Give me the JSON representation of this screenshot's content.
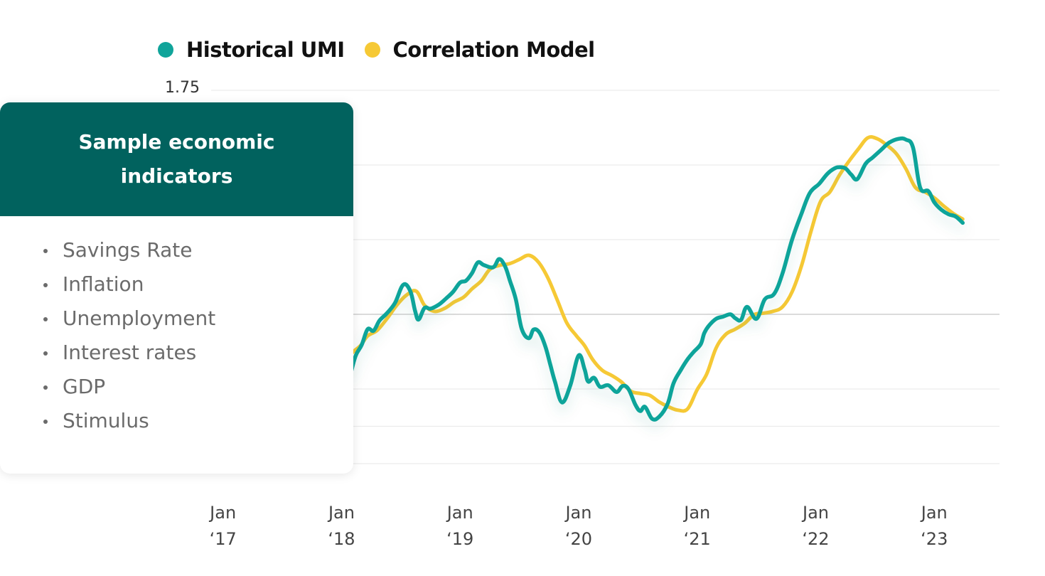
{
  "legend": [
    {
      "label": "Historical UMI",
      "color": "#10a49a"
    },
    {
      "label": "Correlation Model",
      "color": "#f6c935"
    }
  ],
  "info_card": {
    "title": "Sample economic indicators",
    "items": [
      "Savings Rate",
      "Inflation",
      "Unemployment",
      "Interest rates",
      "GDP",
      "Stimulus"
    ],
    "header_color": "#01625e"
  },
  "chart_data": {
    "type": "line",
    "xlabel": "",
    "ylabel": "",
    "x_ticks": [
      {
        "month": "Jan",
        "year": "‘17",
        "x": 2017.0
      },
      {
        "month": "Jan",
        "year": "‘18",
        "x": 2018.0
      },
      {
        "month": "Jan",
        "year": "‘19",
        "x": 2019.0
      },
      {
        "month": "Jan",
        "year": "‘20",
        "x": 2020.0
      },
      {
        "month": "Jan",
        "year": "‘21",
        "x": 2021.0
      },
      {
        "month": "Jan",
        "year": "‘22",
        "x": 2022.0
      },
      {
        "month": "Jan",
        "year": "‘23",
        "x": 2023.0
      }
    ],
    "y_tick_labels": [
      "1.75"
    ],
    "xlim": [
      2016.9,
      2023.55
    ],
    "ylim": [
      0.75,
      1.75
    ],
    "gridlines_y": [
      0.75,
      0.85,
      0.95,
      1.15,
      1.35,
      1.55,
      1.75
    ],
    "baseline_y": 1.15,
    "series": [
      {
        "name": "Historical UMI",
        "color": "#10a49a",
        "x": [
          2018.08,
          2018.12,
          2018.17,
          2018.22,
          2018.27,
          2018.32,
          2018.38,
          2018.45,
          2018.52,
          2018.58,
          2018.62,
          2018.65,
          2018.7,
          2018.75,
          2018.82,
          2018.88,
          2018.94,
          2019.0,
          2019.05,
          2019.1,
          2019.15,
          2019.2,
          2019.28,
          2019.33,
          2019.38,
          2019.42,
          2019.47,
          2019.52,
          2019.58,
          2019.62,
          2019.67,
          2019.72,
          2019.76,
          2019.8,
          2019.86,
          2019.93,
          2020.0,
          2020.05,
          2020.08,
          2020.13,
          2020.18,
          2020.25,
          2020.32,
          2020.37,
          2020.42,
          2020.48,
          2020.52,
          2020.56,
          2020.62,
          2020.68,
          2020.75,
          2020.8,
          2020.86,
          2020.92,
          2020.97,
          2021.03,
          2021.06,
          2021.1,
          2021.16,
          2021.22,
          2021.28,
          2021.32,
          2021.37,
          2021.42,
          2021.5,
          2021.57,
          2021.65,
          2021.72,
          2021.8,
          2021.88,
          2021.95,
          2022.03,
          2022.1,
          2022.16,
          2022.2,
          2022.25,
          2022.3,
          2022.35,
          2022.42,
          2022.48,
          2022.55,
          2022.62,
          2022.7,
          2022.76,
          2022.82,
          2022.88,
          2022.95,
          2023.0,
          2023.06,
          2023.12,
          2023.18,
          2023.24
        ],
        "y": [
          0.995,
          1.04,
          1.068,
          1.11,
          1.106,
          1.133,
          1.152,
          1.18,
          1.229,
          1.212,
          1.16,
          1.136,
          1.167,
          1.165,
          1.176,
          1.192,
          1.21,
          1.235,
          1.24,
          1.26,
          1.289,
          1.282,
          1.276,
          1.298,
          1.278,
          1.24,
          1.19,
          1.111,
          1.086,
          1.109,
          1.101,
          1.063,
          1.016,
          0.97,
          0.914,
          0.96,
          1.04,
          1.003,
          0.97,
          0.98,
          0.956,
          0.96,
          0.942,
          0.958,
          0.95,
          0.907,
          0.891,
          0.902,
          0.87,
          0.876,
          0.91,
          0.965,
          1.0,
          1.03,
          1.049,
          1.07,
          1.1,
          1.12,
          1.138,
          1.144,
          1.15,
          1.14,
          1.135,
          1.17,
          1.138,
          1.19,
          1.205,
          1.26,
          1.35,
          1.42,
          1.475,
          1.5,
          1.527,
          1.541,
          1.544,
          1.541,
          1.524,
          1.512,
          1.553,
          1.57,
          1.59,
          1.61,
          1.62,
          1.618,
          1.597,
          1.49,
          1.48,
          1.45,
          1.43,
          1.418,
          1.412,
          1.395
        ]
      },
      {
        "name": "Correlation Model",
        "color": "#f6c935",
        "x": [
          2018.05,
          2018.1,
          2018.16,
          2018.22,
          2018.3,
          2018.38,
          2018.47,
          2018.55,
          2018.63,
          2018.7,
          2018.78,
          2018.87,
          2018.95,
          2019.03,
          2019.1,
          2019.18,
          2019.25,
          2019.33,
          2019.42,
          2019.5,
          2019.58,
          2019.66,
          2019.74,
          2019.82,
          2019.9,
          2019.98,
          2020.05,
          2020.12,
          2020.2,
          2020.28,
          2020.36,
          2020.44,
          2020.52,
          2020.6,
          2020.68,
          2020.76,
          2020.84,
          2020.92,
          2021.0,
          2021.08,
          2021.16,
          2021.24,
          2021.32,
          2021.4,
          2021.48,
          2021.56,
          2021.64,
          2021.72,
          2021.8,
          2021.88,
          2021.96,
          2022.04,
          2022.12,
          2022.2,
          2022.28,
          2022.36,
          2022.44,
          2022.52,
          2022.6,
          2022.68,
          2022.76,
          2022.84,
          2022.92,
          2023.0,
          2023.08,
          2023.16,
          2023.24
        ],
        "y": [
          1.03,
          1.05,
          1.066,
          1.092,
          1.107,
          1.137,
          1.176,
          1.202,
          1.212,
          1.174,
          1.158,
          1.166,
          1.183,
          1.196,
          1.218,
          1.24,
          1.27,
          1.281,
          1.286,
          1.297,
          1.308,
          1.29,
          1.248,
          1.188,
          1.127,
          1.093,
          1.066,
          1.028,
          1.0,
          0.986,
          0.969,
          0.944,
          0.938,
          0.933,
          0.915,
          0.902,
          0.893,
          0.897,
          0.948,
          0.99,
          1.06,
          1.096,
          1.11,
          1.126,
          1.149,
          1.153,
          1.158,
          1.17,
          1.21,
          1.28,
          1.372,
          1.452,
          1.478,
          1.523,
          1.56,
          1.593,
          1.623,
          1.62,
          1.603,
          1.58,
          1.54,
          1.49,
          1.478,
          1.462,
          1.44,
          1.42,
          1.405
        ]
      }
    ]
  }
}
